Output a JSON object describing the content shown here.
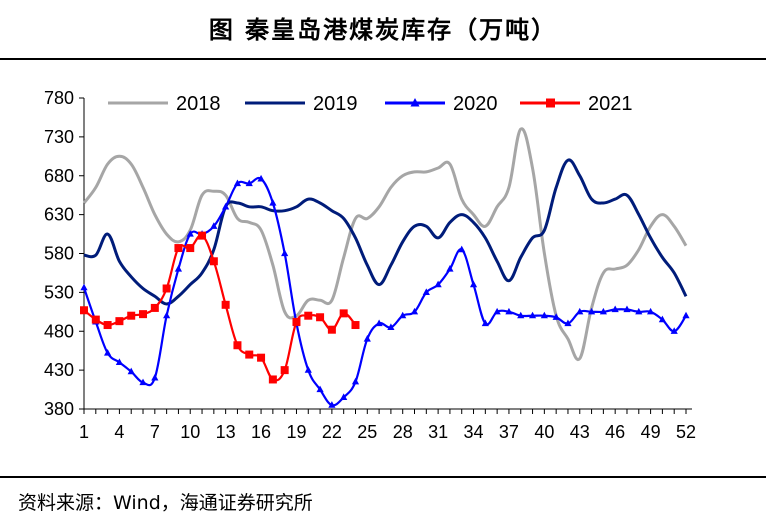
{
  "title": "图  秦皇岛港煤炭库存（万吨）",
  "source": "资料来源：Wind，海通证券研究所",
  "chart_data": {
    "type": "line",
    "ylim": [
      380,
      780
    ],
    "yticks": [
      380,
      430,
      480,
      530,
      580,
      630,
      680,
      730,
      780
    ],
    "xlim": [
      1,
      52
    ],
    "xticks": [
      1,
      4,
      7,
      10,
      13,
      16,
      19,
      22,
      25,
      28,
      31,
      34,
      37,
      40,
      43,
      46,
      49,
      52
    ],
    "legend_position": "top",
    "grid": false,
    "series": [
      {
        "name": "2018",
        "color": "#a6a6a6",
        "marker": "none",
        "x": [
          1,
          2,
          3,
          4,
          5,
          6,
          7,
          8,
          9,
          10,
          11,
          12,
          13,
          14,
          15,
          16,
          17,
          18,
          19,
          20,
          21,
          22,
          23,
          24,
          25,
          26,
          27,
          28,
          29,
          30,
          31,
          32,
          33,
          34,
          35,
          36,
          37,
          38,
          39,
          40,
          41,
          42,
          43,
          44,
          45,
          46,
          47,
          48,
          49,
          50,
          51,
          52
        ],
        "values": [
          645,
          665,
          695,
          705,
          695,
          665,
          630,
          605,
          595,
          610,
          655,
          660,
          655,
          625,
          620,
          610,
          565,
          505,
          500,
          520,
          520,
          520,
          575,
          625,
          625,
          640,
          665,
          680,
          685,
          685,
          690,
          695,
          650,
          630,
          615,
          640,
          665,
          740,
          690,
          580,
          500,
          470,
          445,
          510,
          555,
          560,
          565,
          585,
          615,
          630,
          615,
          590
        ]
      },
      {
        "name": "2019",
        "color": "#001c7a",
        "marker": "none",
        "x": [
          1,
          2,
          3,
          4,
          5,
          6,
          7,
          8,
          9,
          10,
          11,
          12,
          13,
          14,
          15,
          16,
          17,
          18,
          19,
          20,
          21,
          22,
          23,
          24,
          25,
          26,
          27,
          28,
          29,
          30,
          31,
          32,
          33,
          34,
          35,
          36,
          37,
          38,
          39,
          40,
          41,
          42,
          43,
          44,
          45,
          46,
          47,
          48,
          49,
          50,
          51,
          52
        ],
        "values": [
          578,
          578,
          605,
          570,
          550,
          535,
          525,
          515,
          525,
          540,
          555,
          585,
          640,
          645,
          640,
          640,
          635,
          635,
          640,
          650,
          645,
          635,
          625,
          600,
          565,
          540,
          565,
          595,
          615,
          615,
          600,
          620,
          630,
          620,
          600,
          570,
          545,
          575,
          600,
          610,
          665,
          700,
          680,
          650,
          645,
          650,
          655,
          630,
          600,
          575,
          555,
          525
        ]
      },
      {
        "name": "2020",
        "color": "#0000ff",
        "marker": "triangle",
        "x": [
          1,
          2,
          3,
          4,
          5,
          6,
          7,
          8,
          9,
          10,
          11,
          12,
          13,
          14,
          15,
          16,
          17,
          18,
          19,
          20,
          21,
          22,
          23,
          24,
          25,
          26,
          27,
          28,
          29,
          30,
          31,
          32,
          33,
          34,
          35,
          36,
          37,
          38,
          39,
          40,
          41,
          42,
          43,
          44,
          45,
          46,
          47,
          48,
          49,
          50,
          51,
          52
        ],
        "values": [
          536,
          492,
          452,
          440,
          428,
          414,
          420,
          500,
          560,
          605,
          605,
          615,
          640,
          670,
          670,
          676,
          645,
          580,
          490,
          430,
          405,
          385,
          395,
          415,
          470,
          490,
          485,
          500,
          505,
          530,
          540,
          560,
          585,
          540,
          490,
          505,
          505,
          500,
          500,
          500,
          498,
          490,
          505,
          505,
          505,
          508,
          508,
          505,
          505,
          495,
          480,
          500
        ]
      },
      {
        "name": "2021",
        "color": "#ff0000",
        "marker": "square",
        "x": [
          1,
          2,
          3,
          4,
          5,
          6,
          7,
          8,
          9,
          10,
          11,
          12,
          13,
          14,
          15,
          16,
          17,
          18,
          19,
          20,
          21,
          22,
          23,
          24
        ],
        "values": [
          507,
          495,
          488,
          493,
          500,
          502,
          510,
          535,
          587,
          587,
          603,
          570,
          514,
          462,
          450,
          446,
          418,
          430,
          492,
          500,
          498,
          482,
          503,
          488
        ]
      }
    ]
  }
}
